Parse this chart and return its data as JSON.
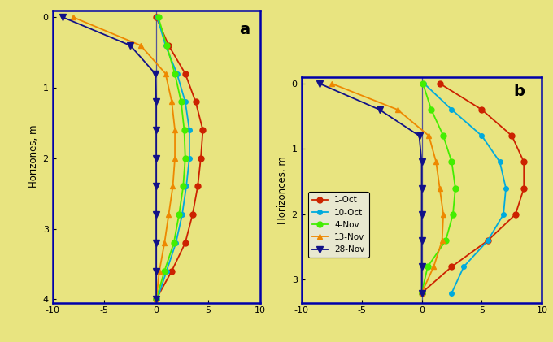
{
  "background_color": "#e8e480",
  "fig_bg": "#e8e480",
  "series": [
    {
      "label": "1-Oct",
      "color": "#cc2200",
      "marker": "o",
      "markersize": 5
    },
    {
      "label": "10-Oct",
      "color": "#00aadd",
      "marker": "o",
      "markersize": 4
    },
    {
      "label": "4-Nov",
      "color": "#44ee00",
      "marker": "o",
      "markersize": 5
    },
    {
      "label": "13-Nov",
      "color": "#ee8800",
      "marker": "^",
      "markersize": 5
    },
    {
      "label": "28-Nov",
      "color": "#111188",
      "marker": "v",
      "markersize": 6
    }
  ],
  "plot_a": {
    "label": "a",
    "ylabel": "Horizones, m",
    "xlim": [
      -10,
      10
    ],
    "ylim": [
      4.05,
      -0.1
    ],
    "yticks": [
      0.0,
      1.0,
      2.0,
      3.0,
      4.0
    ],
    "xticks": [
      -10.0,
      -5.0,
      0.0,
      5.0,
      10.0
    ],
    "depths": [
      0.0,
      0.4,
      0.8,
      1.2,
      1.6,
      2.0,
      2.4,
      2.8,
      3.2,
      3.6,
      4.0
    ],
    "1-Oct": [
      0.0,
      1.2,
      2.8,
      3.8,
      4.5,
      4.3,
      4.0,
      3.5,
      2.8,
      1.5,
      0.0
    ],
    "10-Oct": [
      0.1,
      0.9,
      2.0,
      2.8,
      3.2,
      3.2,
      2.9,
      2.5,
      1.9,
      1.0,
      0.1
    ],
    "4-Nov": [
      0.2,
      1.0,
      1.8,
      2.4,
      2.7,
      2.8,
      2.6,
      2.2,
      1.7,
      0.8,
      0.0
    ],
    "13-Nov": [
      -8.0,
      -1.5,
      0.9,
      1.5,
      1.8,
      1.8,
      1.6,
      1.2,
      0.8,
      0.3,
      0.0
    ],
    "28-Nov": [
      -9.0,
      -2.5,
      -0.1,
      0.0,
      0.0,
      0.0,
      0.0,
      0.0,
      0.0,
      0.0,
      0.0
    ]
  },
  "plot_b": {
    "label": "b",
    "ylabel": "Horizonces, m",
    "xlim": [
      -10,
      10
    ],
    "ylim": [
      3.35,
      -0.1
    ],
    "yticks": [
      0.0,
      1.0,
      2.0,
      3.0
    ],
    "xticks": [
      -10.0,
      -5.0,
      0.0,
      5.0,
      10.0
    ],
    "depths": [
      0.0,
      0.4,
      0.8,
      1.2,
      1.6,
      2.0,
      2.4,
      2.8,
      3.2
    ],
    "1-Oct": [
      1.5,
      5.0,
      7.5,
      8.5,
      8.5,
      7.8,
      5.5,
      2.5,
      0.0
    ],
    "10-Oct": [
      0.2,
      2.5,
      5.0,
      6.5,
      7.0,
      6.8,
      5.5,
      3.5,
      2.5
    ],
    "4-Nov": [
      0.1,
      0.8,
      1.8,
      2.5,
      2.8,
      2.6,
      2.0,
      0.5,
      0.0
    ],
    "13-Nov": [
      -7.5,
      -2.0,
      0.6,
      1.2,
      1.5,
      1.8,
      1.7,
      1.0,
      0.0
    ],
    "28-Nov": [
      -8.5,
      -3.5,
      -0.2,
      0.0,
      0.0,
      0.0,
      0.0,
      0.0,
      0.0
    ]
  }
}
